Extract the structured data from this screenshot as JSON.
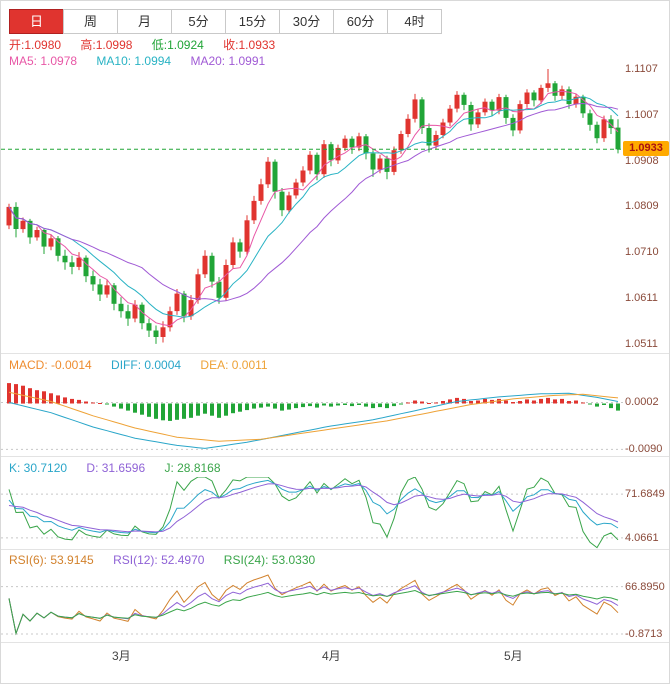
{
  "tabs": {
    "items": [
      {
        "label": "日",
        "active": true
      },
      {
        "label": "周",
        "active": false
      },
      {
        "label": "月",
        "active": false
      },
      {
        "label": "5分",
        "active": false
      },
      {
        "label": "15分",
        "active": false
      },
      {
        "label": "30分",
        "active": false
      },
      {
        "label": "60分",
        "active": false
      },
      {
        "label": "4时",
        "active": false
      }
    ]
  },
  "quote": {
    "open": "开:1.0980",
    "high": "高:1.0998",
    "low": "低:1.0924",
    "close": "收:1.0933"
  },
  "ma": {
    "ma5": "MA5: 1.0978",
    "ma10": "MA10: 1.0994",
    "ma20": "MA20: 1.0991"
  },
  "macd_header": {
    "macd": "MACD: -0.0014",
    "diff": "DIFF: 0.0004",
    "dea": "DEA: 0.0011"
  },
  "kdj_header": {
    "k": "K: 30.7120",
    "d": "D: 31.6596",
    "j": "J: 28.8168"
  },
  "rsi_header": {
    "rsi6": "RSI(6): 53.9145",
    "rsi12": "RSI(12): 52.4970",
    "rsi24": "RSI(24): 53.0330"
  },
  "colors": {
    "up": "#e0342f",
    "down": "#21a537",
    "ma5": "#e857a6",
    "ma10": "#29b3c4",
    "ma20": "#a05ad5",
    "macd_text": "#ee8c2f",
    "diff": "#2aa6c9",
    "dea": "#eea236",
    "k": "#2aa6c9",
    "d": "#8f62d6",
    "j": "#3aa54a",
    "rsi6": "#d2822d",
    "rsi12": "#8f62d6",
    "rsi24": "#3aa54a",
    "price_line": "#21a537",
    "tag_bg": "#ffaa00",
    "tag_text": "#aa1111",
    "axis_text": "#8a4a3a",
    "month_text": "#444444",
    "grid": "#c8c8c8",
    "tab_active": "#e0342f"
  },
  "chart_data": {
    "type": "candlestick",
    "price_panel": {
      "range": {
        "max": 1.112,
        "min": 1.05
      },
      "ma_periods": [
        5,
        10,
        20
      ],
      "current_price": {
        "text": "1.0933",
        "value": 1.0933
      },
      "y_axis_labels": [
        {
          "text": "1.1107",
          "value": 1.1107
        },
        {
          "text": "1.1007",
          "value": 1.1007
        },
        {
          "text": "1.0908",
          "value": 1.0908
        },
        {
          "text": "1.0809",
          "value": 1.0809
        },
        {
          "text": "1.0710",
          "value": 1.071
        },
        {
          "text": "1.0611",
          "value": 1.0611
        },
        {
          "text": "1.0511",
          "value": 1.0511
        }
      ],
      "ohlc": [
        [
          1.0768,
          1.0815,
          1.076,
          1.0808
        ],
        [
          1.0808,
          1.0818,
          1.0742,
          1.076
        ],
        [
          1.076,
          1.0785,
          1.0752,
          1.0778
        ],
        [
          1.0778,
          1.0782,
          1.0728,
          1.0742
        ],
        [
          1.0742,
          1.0765,
          1.0735,
          1.0758
        ],
        [
          1.0758,
          1.0762,
          1.0706,
          1.0722
        ],
        [
          1.0722,
          1.0748,
          1.0714,
          1.074
        ],
        [
          1.074,
          1.0745,
          1.069,
          1.0702
        ],
        [
          1.0702,
          1.0715,
          1.0672,
          1.0688
        ],
        [
          1.0688,
          1.0702,
          1.0662,
          1.0678
        ],
        [
          1.0678,
          1.071,
          1.0671,
          1.0698
        ],
        [
          1.0698,
          1.0703,
          1.0645,
          1.0658
        ],
        [
          1.0658,
          1.067,
          1.0626,
          1.064
        ],
        [
          1.064,
          1.0652,
          1.0604,
          1.0618
        ],
        [
          1.0618,
          1.0649,
          1.0611,
          1.0638
        ],
        [
          1.0638,
          1.0643,
          1.0584,
          1.0598
        ],
        [
          1.0598,
          1.0612,
          1.0568,
          1.0582
        ],
        [
          1.0582,
          1.0596,
          1.055,
          1.0566
        ],
        [
          1.0566,
          1.0606,
          1.0558,
          1.0596
        ],
        [
          1.0596,
          1.0601,
          1.0543,
          1.0556
        ],
        [
          1.0556,
          1.0566,
          1.0526,
          1.054
        ],
        [
          1.054,
          1.0551,
          1.0511,
          1.0526
        ],
        [
          1.0526,
          1.056,
          1.0514,
          1.0547
        ],
        [
          1.0547,
          1.0592,
          1.0538,
          1.0582
        ],
        [
          1.0582,
          1.063,
          1.0574,
          1.062
        ],
        [
          1.062,
          1.0626,
          1.0558,
          1.0571
        ],
        [
          1.0571,
          1.0617,
          1.0563,
          1.0606
        ],
        [
          1.0606,
          1.0674,
          1.0598,
          1.0662
        ],
        [
          1.0662,
          1.0714,
          1.0654,
          1.0702
        ],
        [
          1.0702,
          1.0709,
          1.0633,
          1.0646
        ],
        [
          1.0646,
          1.0656,
          1.0598,
          1.0611
        ],
        [
          1.0611,
          1.0694,
          1.0604,
          1.0682
        ],
        [
          1.0682,
          1.0742,
          1.0674,
          1.0731
        ],
        [
          1.0731,
          1.0739,
          1.0698,
          1.0711
        ],
        [
          1.0711,
          1.079,
          1.0704,
          1.0779
        ],
        [
          1.0779,
          1.0832,
          1.0771,
          1.0821
        ],
        [
          1.0821,
          1.0869,
          1.0813,
          1.0857
        ],
        [
          1.0857,
          1.0916,
          1.0849,
          1.0906
        ],
        [
          1.0906,
          1.0911,
          1.0826,
          1.0841
        ],
        [
          1.0841,
          1.0849,
          1.0788,
          1.0801
        ],
        [
          1.0801,
          1.0841,
          1.0794,
          1.0833
        ],
        [
          1.0833,
          1.0869,
          1.0826,
          1.0861
        ],
        [
          1.0861,
          1.0896,
          1.0853,
          1.0887
        ],
        [
          1.0887,
          1.0929,
          1.0879,
          1.0921
        ],
        [
          1.0921,
          1.0926,
          1.0866,
          1.0879
        ],
        [
          1.0879,
          1.0953,
          1.0871,
          1.0944
        ],
        [
          1.0944,
          1.0949,
          1.0896,
          1.0909
        ],
        [
          1.0909,
          1.0943,
          1.0901,
          1.0936
        ],
        [
          1.0936,
          1.0963,
          1.0929,
          1.0956
        ],
        [
          1.0956,
          1.0961,
          1.0923,
          1.0937
        ],
        [
          1.0937,
          1.0969,
          1.0929,
          1.0961
        ],
        [
          1.0961,
          1.0966,
          1.0911,
          1.0924
        ],
        [
          1.0924,
          1.0931,
          1.0873,
          1.0889
        ],
        [
          1.0889,
          1.0921,
          1.0881,
          1.0913
        ],
        [
          1.0913,
          1.0919,
          1.0868,
          1.0884
        ],
        [
          1.0884,
          1.0939,
          1.0877,
          1.0931
        ],
        [
          1.0931,
          1.0973,
          1.0923,
          1.0966
        ],
        [
          1.0966,
          1.1009,
          1.0959,
          1.0999
        ],
        [
          1.0999,
          1.1053,
          1.0991,
          1.1041
        ],
        [
          1.1041,
          1.1046,
          1.0966,
          1.0979
        ],
        [
          1.0979,
          1.0989,
          1.0926,
          1.0941
        ],
        [
          1.0941,
          1.0973,
          1.0933,
          1.0964
        ],
        [
          1.0964,
          1.0999,
          1.0957,
          1.0991
        ],
        [
          1.0991,
          1.1029,
          1.0983,
          1.1021
        ],
        [
          1.1021,
          1.1059,
          1.1013,
          1.1051
        ],
        [
          1.1051,
          1.1056,
          1.1018,
          1.1029
        ],
        [
          1.1029,
          1.1036,
          1.0973,
          1.0987
        ],
        [
          1.0987,
          1.1021,
          1.0979,
          1.1013
        ],
        [
          1.1013,
          1.1043,
          1.1006,
          1.1036
        ],
        [
          1.1036,
          1.1041,
          1.1006,
          1.1017
        ],
        [
          1.1017,
          1.1053,
          1.1009,
          1.1046
        ],
        [
          1.1046,
          1.1051,
          1.0988,
          1.1001
        ],
        [
          1.1001,
          1.1009,
          1.0961,
          1.0974
        ],
        [
          1.0974,
          1.1039,
          1.0967,
          1.1031
        ],
        [
          1.1031,
          1.1063,
          1.1023,
          1.1056
        ],
        [
          1.1056,
          1.1061,
          1.1026,
          1.1039
        ],
        [
          1.1039,
          1.1073,
          1.1031,
          1.1066
        ],
        [
          1.1066,
          1.1107,
          1.1057,
          1.1076
        ],
        [
          1.1076,
          1.1081,
          1.1038,
          1.1049
        ],
        [
          1.1049,
          1.1071,
          1.1041,
          1.1063
        ],
        [
          1.1063,
          1.1069,
          1.1021,
          1.1031
        ],
        [
          1.1031,
          1.1053,
          1.1023,
          1.1047
        ],
        [
          1.1047,
          1.1051,
          1.1001,
          1.1011
        ],
        [
          1.1011,
          1.1019,
          1.0973,
          1.0986
        ],
        [
          1.0986,
          1.0993,
          1.0946,
          1.0957
        ],
        [
          1.0957,
          1.1006,
          1.0949,
          1.0998
        ],
        [
          1.0998,
          1.1007,
          1.0966,
          1.0979
        ],
        [
          1.098,
          1.0998,
          1.0924,
          1.0933
        ]
      ]
    },
    "x_axis": {
      "month_labels": [
        {
          "text": "3月",
          "index": 16
        },
        {
          "text": "4月",
          "index": 46
        },
        {
          "text": "5月",
          "index": 72
        }
      ]
    },
    "macd_panel": {
      "range": {
        "max": 0.005,
        "min": -0.0095
      },
      "labels": [
        {
          "text": "0.0002",
          "value": 0.0002
        },
        {
          "text": "-0.0090",
          "value": -0.009
        }
      ],
      "hist": [
        0.004,
        0.0038,
        0.0035,
        0.003,
        0.0026,
        0.0024,
        0.002,
        0.0016,
        0.0012,
        0.0009,
        0.0007,
        0.0004,
        0.0002,
        0.0001,
        -0.0002,
        -0.0006,
        -0.001,
        -0.0014,
        -0.0018,
        -0.0022,
        -0.0026,
        -0.003,
        -0.0033,
        -0.0034,
        -0.0032,
        -0.003,
        -0.0028,
        -0.0024,
        -0.002,
        -0.0024,
        -0.0028,
        -0.0024,
        -0.0019,
        -0.0016,
        -0.0013,
        -0.001,
        -0.0008,
        -0.0006,
        -0.001,
        -0.0014,
        -0.0012,
        -0.0009,
        -0.0007,
        -0.0005,
        -0.0008,
        -0.0004,
        -0.0006,
        -0.0004,
        -0.0003,
        -0.0005,
        -0.0003,
        -0.0006,
        -0.0009,
        -0.0007,
        -0.0009,
        -0.0005,
        -0.0002,
        0.0002,
        0.0006,
        0.0004,
        0.0001,
        0.0002,
        0.0005,
        0.0008,
        0.0011,
        0.0009,
        0.0005,
        0.0006,
        0.0009,
        0.0007,
        0.0009,
        0.0006,
        0.0003,
        0.0005,
        0.0008,
        0.0006,
        0.0009,
        0.0011,
        0.0008,
        0.0009,
        0.0005,
        0.0006,
        0.0002,
        -0.0002,
        -0.0006,
        -0.0003,
        -0.0009,
        -0.0014
      ],
      "diff_points": [
        [
          0,
          0.0002
        ],
        [
          6,
          -0.0018
        ],
        [
          12,
          -0.0046
        ],
        [
          18,
          -0.0068
        ],
        [
          24,
          -0.0082
        ],
        [
          28,
          -0.0088
        ],
        [
          34,
          -0.0076
        ],
        [
          40,
          -0.006
        ],
        [
          46,
          -0.0044
        ],
        [
          52,
          -0.0032
        ],
        [
          58,
          -0.0014
        ],
        [
          64,
          0.0004
        ],
        [
          70,
          0.0013
        ],
        [
          76,
          0.0019
        ],
        [
          80,
          0.002
        ],
        [
          84,
          0.0012
        ],
        [
          87,
          0.0004
        ]
      ],
      "dea_points": [
        [
          0,
          0.0022
        ],
        [
          6,
          0.0004
        ],
        [
          12,
          -0.0024
        ],
        [
          18,
          -0.0048
        ],
        [
          24,
          -0.0066
        ],
        [
          30,
          -0.0074
        ],
        [
          36,
          -0.007
        ],
        [
          42,
          -0.0058
        ],
        [
          48,
          -0.0046
        ],
        [
          54,
          -0.0034
        ],
        [
          60,
          -0.0018
        ],
        [
          66,
          -0.0002
        ],
        [
          72,
          0.0009
        ],
        [
          78,
          0.0016
        ],
        [
          82,
          0.0018
        ],
        [
          87,
          0.0011
        ]
      ]
    },
    "kdj_panel": {
      "range": {
        "max": 95,
        "min": -10
      },
      "period": 9,
      "labels": [
        {
          "text": "71.6849",
          "value": 71.6849
        },
        {
          "text": "4.0661",
          "value": 4.0661
        }
      ]
    },
    "rsi_panel": {
      "range": {
        "max": 92,
        "min": -8
      },
      "periods": [
        6,
        12,
        24
      ],
      "labels": [
        {
          "text": "66.8950",
          "value": 66.895
        },
        {
          "text": "-0.8713",
          "value": -0.8713
        }
      ]
    }
  }
}
